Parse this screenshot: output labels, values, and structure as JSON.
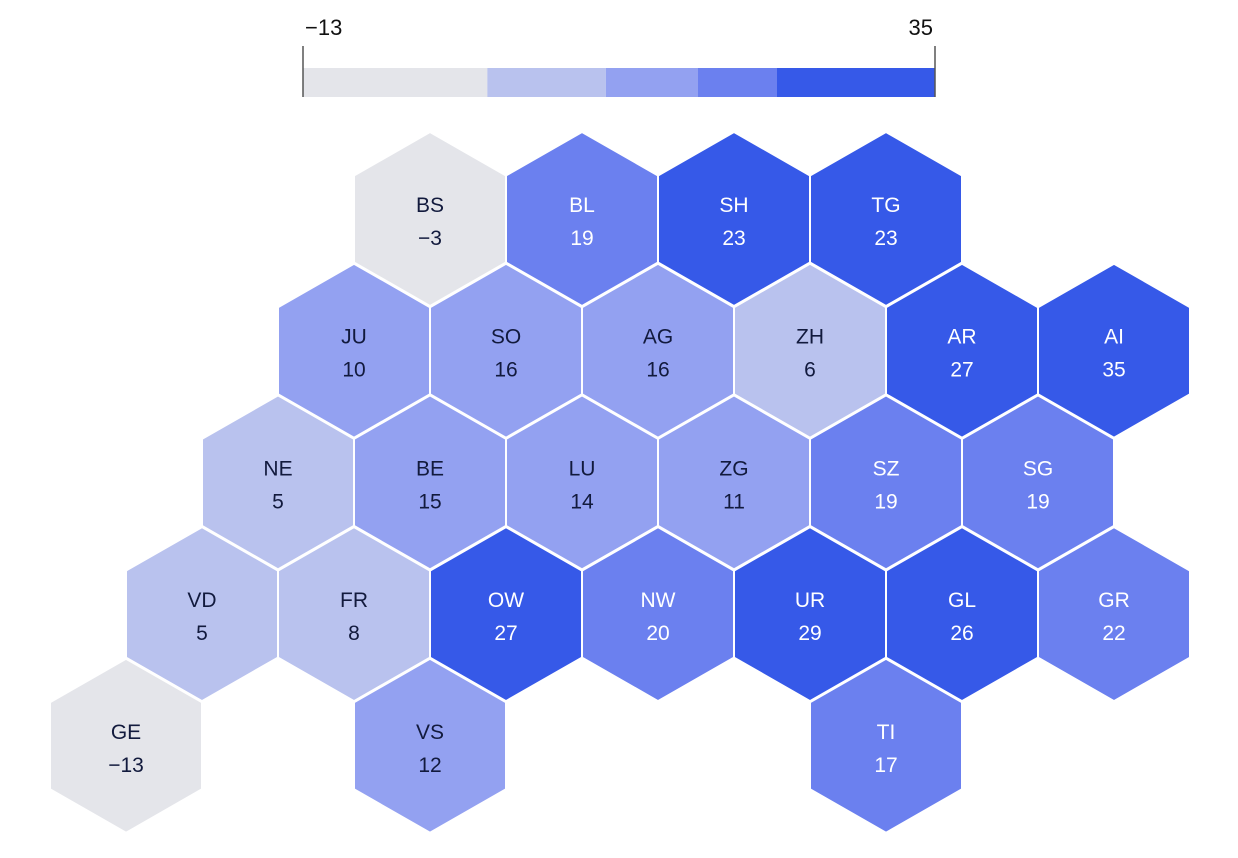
{
  "chart_data": {
    "type": "heatmap",
    "layout": "hexagonal tile map",
    "legend": {
      "min_label": "−13",
      "max_label": "35",
      "min": -13,
      "max": 35,
      "breakpoints": [
        -13,
        1,
        10,
        17,
        23,
        35
      ],
      "colors": [
        "#e4e5ea",
        "#b9c2ee",
        "#93a1f1",
        "#6b80ef",
        "#3659e8"
      ],
      "placement": "top"
    },
    "colors": {
      "light_text": "#ffffff",
      "dark_text": "#121a3d",
      "tile_border": "#ffffff"
    },
    "tiles": [
      {
        "code": "BS",
        "value": -3,
        "value_label": "−3",
        "row": 0,
        "col": 4
      },
      {
        "code": "BL",
        "value": 19,
        "value_label": "19",
        "row": 0,
        "col": 6
      },
      {
        "code": "SH",
        "value": 23,
        "value_label": "23",
        "row": 0,
        "col": 8
      },
      {
        "code": "TG",
        "value": 23,
        "value_label": "23",
        "row": 0,
        "col": 10
      },
      {
        "code": "JU",
        "value": 10,
        "value_label": "10",
        "row": 1,
        "col": 3
      },
      {
        "code": "SO",
        "value": 16,
        "value_label": "16",
        "row": 1,
        "col": 5
      },
      {
        "code": "AG",
        "value": 16,
        "value_label": "16",
        "row": 1,
        "col": 7
      },
      {
        "code": "ZH",
        "value": 6,
        "value_label": "6",
        "row": 1,
        "col": 9
      },
      {
        "code": "AR",
        "value": 27,
        "value_label": "27",
        "row": 1,
        "col": 11
      },
      {
        "code": "AI",
        "value": 35,
        "value_label": "35",
        "row": 1,
        "col": 13
      },
      {
        "code": "NE",
        "value": 5,
        "value_label": "5",
        "row": 2,
        "col": 2
      },
      {
        "code": "BE",
        "value": 15,
        "value_label": "15",
        "row": 2,
        "col": 4
      },
      {
        "code": "LU",
        "value": 14,
        "value_label": "14",
        "row": 2,
        "col": 6
      },
      {
        "code": "ZG",
        "value": 11,
        "value_label": "11",
        "row": 2,
        "col": 8
      },
      {
        "code": "SZ",
        "value": 19,
        "value_label": "19",
        "row": 2,
        "col": 10
      },
      {
        "code": "SG",
        "value": 19,
        "value_label": "19",
        "row": 2,
        "col": 12
      },
      {
        "code": "VD",
        "value": 5,
        "value_label": "5",
        "row": 3,
        "col": 1
      },
      {
        "code": "FR",
        "value": 8,
        "value_label": "8",
        "row": 3,
        "col": 3
      },
      {
        "code": "OW",
        "value": 27,
        "value_label": "27",
        "row": 3,
        "col": 5
      },
      {
        "code": "NW",
        "value": 20,
        "value_label": "20",
        "row": 3,
        "col": 7
      },
      {
        "code": "UR",
        "value": 29,
        "value_label": "29",
        "row": 3,
        "col": 9
      },
      {
        "code": "GL",
        "value": 26,
        "value_label": "26",
        "row": 3,
        "col": 11
      },
      {
        "code": "GR",
        "value": 22,
        "value_label": "22",
        "row": 3,
        "col": 13
      },
      {
        "code": "GE",
        "value": -13,
        "value_label": "−13",
        "row": 4,
        "col": 0
      },
      {
        "code": "VS",
        "value": 12,
        "value_label": "12",
        "row": 4,
        "col": 4
      },
      {
        "code": "TI",
        "value": 17,
        "value_label": "17",
        "row": 4,
        "col": 10
      }
    ]
  }
}
